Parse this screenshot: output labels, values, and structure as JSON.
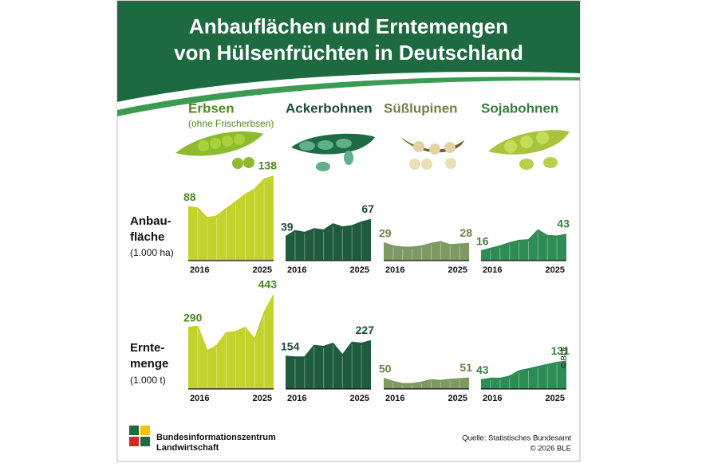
{
  "header": {
    "title": [
      "Anbauflächen und Erntemengen",
      "von Hülsenfrüchten in Deutschland"
    ]
  },
  "crops": [
    {
      "name": "Erbsen",
      "note": "(ohne Frischerbsen)",
      "color": "#4f8a24"
    },
    {
      "name": "Ackerbohnen",
      "color": "#1d4d35"
    },
    {
      "name": "Süßlupinen",
      "color": "#6f7f45"
    },
    {
      "name": "Sojabohnen",
      "color": "#3b7d3c"
    }
  ],
  "rows": [
    {
      "label": [
        "Anbau-",
        "fläche"
      ],
      "unit": "(1.000 ha)"
    },
    {
      "label": [
        "Ernte-",
        "menge"
      ],
      "unit": "(1.000 t)"
    }
  ],
  "chart_data": [
    {
      "type": "area",
      "categories": [
        "2016",
        null,
        null,
        null,
        null,
        null,
        null,
        null,
        null,
        "2025"
      ],
      "values": [
        88,
        86,
        70,
        73,
        85,
        96,
        108,
        117,
        133,
        138
      ],
      "color": "#c3d32c"
    },
    {
      "type": "area",
      "categories": [
        "2016",
        null,
        null,
        null,
        null,
        null,
        null,
        null,
        null,
        "2025"
      ],
      "values": [
        39,
        49,
        46,
        52,
        50,
        60,
        55,
        57,
        63,
        67
      ],
      "color": "#1f5c3e"
    },
    {
      "type": "area",
      "categories": [
        "2016",
        null,
        null,
        null,
        null,
        null,
        null,
        null,
        null,
        "2025"
      ],
      "values": [
        29,
        24,
        22,
        22,
        24,
        28,
        31,
        26,
        27,
        28
      ],
      "color": "#7e9a62"
    },
    {
      "type": "area",
      "categories": [
        "2016",
        null,
        null,
        null,
        null,
        null,
        null,
        null,
        null,
        "2025"
      ],
      "values": [
        16,
        20,
        24,
        29,
        33,
        34,
        50,
        41,
        40,
        43
      ],
      "color": "#2e8c55"
    },
    {
      "type": "area",
      "categories": [
        "2016",
        null,
        null,
        null,
        null,
        null,
        null,
        null,
        null,
        "2025"
      ],
      "values": [
        290,
        295,
        180,
        205,
        265,
        270,
        290,
        235,
        360,
        443
      ],
      "color": "#c3d32c"
    },
    {
      "type": "area",
      "categories": [
        "2016",
        null,
        null,
        null,
        null,
        null,
        null,
        null,
        null,
        "2025"
      ],
      "values": [
        154,
        150,
        150,
        205,
        200,
        215,
        160,
        220,
        215,
        227
      ],
      "color": "#1f5c3e"
    },
    {
      "type": "area",
      "categories": [
        "2016",
        null,
        null,
        null,
        null,
        null,
        null,
        null,
        null,
        "2025"
      ],
      "values": [
        50,
        35,
        25,
        25,
        32,
        43,
        40,
        45,
        48,
        51
      ],
      "color": "#7e9a62"
    },
    {
      "type": "area",
      "categories": [
        "2016",
        null,
        null,
        null,
        null,
        null,
        null,
        null,
        null,
        "2025"
      ],
      "values": [
        43,
        50,
        50,
        60,
        85,
        95,
        105,
        115,
        125,
        131
      ],
      "color": "#2e8c55"
    }
  ],
  "credit": "© BLE",
  "footer": {
    "org": [
      "Bundesinformationszentrum",
      "Landwirtschaft"
    ],
    "source": "Quelle: Statistisches Bundesamt",
    "copyright": "© 2026 BLE"
  }
}
